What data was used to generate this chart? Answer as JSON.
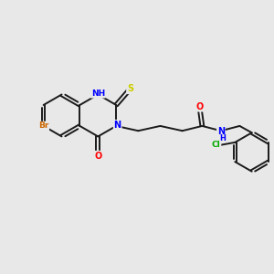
{
  "background_color": "#e8e8e8",
  "bond_color": "#1a1a1a",
  "atom_colors": {
    "N": "#0000ff",
    "O": "#ff0000",
    "S": "#cccc00",
    "Br": "#cc6600",
    "Cl": "#00aa00",
    "H_label": "#0000ff"
  },
  "figsize": [
    3.0,
    3.0
  ],
  "dpi": 100
}
